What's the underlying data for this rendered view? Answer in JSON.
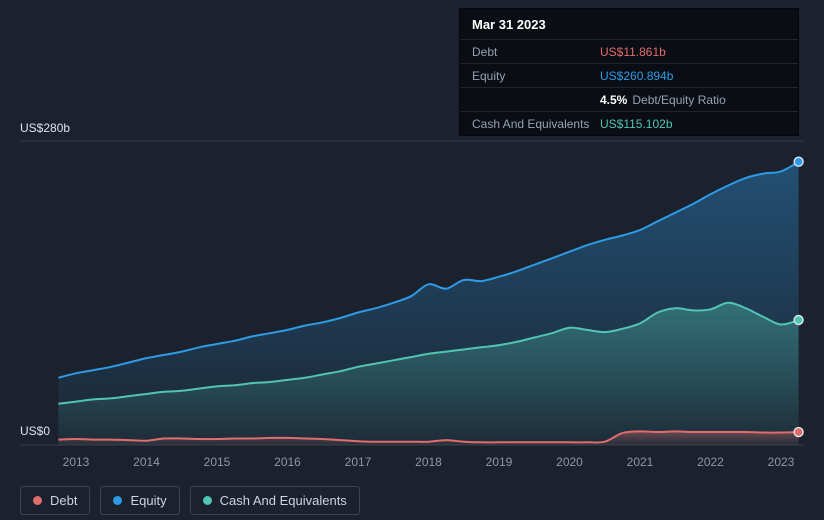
{
  "colors": {
    "debt": "#e06d6d",
    "equity": "#2e9be6",
    "cash": "#52c5b2",
    "background": "#1b222d",
    "tooltip_bg": "#0a0d13",
    "grid": "rgba(150,162,178,0.22)",
    "axis_text": "#8e97a6",
    "y_label_text": "#dde3ec"
  },
  "tooltip": {
    "date": "Mar 31 2023",
    "rows": [
      {
        "label": "Debt",
        "value": "US$11.861b",
        "color_key": "debt"
      },
      {
        "label": "Equity",
        "value": "US$260.894b",
        "color_key": "equity"
      },
      {
        "label": "",
        "value_bold": "4.5%",
        "value_rest": "Debt/Equity Ratio"
      },
      {
        "label": "Cash And Equivalents",
        "value": "US$115.102b",
        "color_key": "cash"
      }
    ]
  },
  "y_axis": {
    "top_label": "US$280b",
    "bottom_label": "US$0"
  },
  "legend": [
    {
      "label": "Debt",
      "color_key": "debt"
    },
    {
      "label": "Equity",
      "color_key": "equity"
    },
    {
      "label": "Cash And Equivalents",
      "color_key": "cash"
    }
  ],
  "chart_data": {
    "type": "area",
    "title": "",
    "xlabel": "",
    "ylabel": "US$ billions",
    "ylim": [
      0,
      280
    ],
    "y_gridlines": [
      0,
      280
    ],
    "grid": "horizontal-minimal",
    "legend_position": "bottom-left",
    "x_ticks": [
      2013,
      2014,
      2015,
      2016,
      2017,
      2018,
      2019,
      2020,
      2021,
      2022,
      2023
    ],
    "x": [
      2012.75,
      2013,
      2013.25,
      2013.5,
      2013.75,
      2014,
      2014.25,
      2014.5,
      2014.75,
      2015,
      2015.25,
      2015.5,
      2015.75,
      2016,
      2016.25,
      2016.5,
      2016.75,
      2017,
      2017.25,
      2017.5,
      2017.75,
      2018,
      2018.25,
      2018.5,
      2018.75,
      2019,
      2019.25,
      2019.5,
      2019.75,
      2020,
      2020.25,
      2020.5,
      2020.75,
      2021,
      2021.25,
      2021.5,
      2021.75,
      2022,
      2022.25,
      2022.5,
      2022.75,
      2023,
      2023.25
    ],
    "series": [
      {
        "name": "Equity",
        "color_key": "equity",
        "values": [
          62,
          66,
          69,
          72,
          76,
          80,
          83,
          86,
          90,
          93,
          96,
          100,
          103,
          106,
          110,
          113,
          117,
          122,
          126,
          131,
          137,
          148,
          144,
          152,
          151,
          155,
          160,
          166,
          172,
          178,
          184,
          189,
          193,
          198,
          206,
          214,
          222,
          231,
          239,
          246,
          250,
          252,
          260.894
        ]
      },
      {
        "name": "Cash And Equivalents",
        "color_key": "cash",
        "values": [
          38,
          40,
          42,
          43,
          45,
          47,
          49,
          50,
          52,
          54,
          55,
          57,
          58,
          60,
          62,
          65,
          68,
          72,
          75,
          78,
          81,
          84,
          86,
          88,
          90,
          92,
          95,
          99,
          103,
          108,
          106,
          104,
          107,
          112,
          122,
          126,
          124,
          125,
          131,
          126,
          118,
          111,
          115.102
        ]
      },
      {
        "name": "Debt",
        "color_key": "debt",
        "values": [
          5,
          5.5,
          5,
          5,
          4.5,
          4,
          6,
          6,
          5.5,
          5.5,
          6,
          6,
          6.5,
          6.5,
          6,
          5.5,
          4.5,
          3.5,
          3,
          3,
          3,
          3,
          4.5,
          3,
          2.5,
          2.5,
          2.5,
          2.5,
          2.5,
          2.5,
          2.5,
          3,
          11,
          12.5,
          12,
          12.5,
          12,
          12,
          12,
          12,
          11.5,
          11.5,
          11.861
        ]
      }
    ],
    "end_values": {
      "Debt": 11.861,
      "Equity": 260.894,
      "Cash And Equivalents": 115.102
    }
  }
}
